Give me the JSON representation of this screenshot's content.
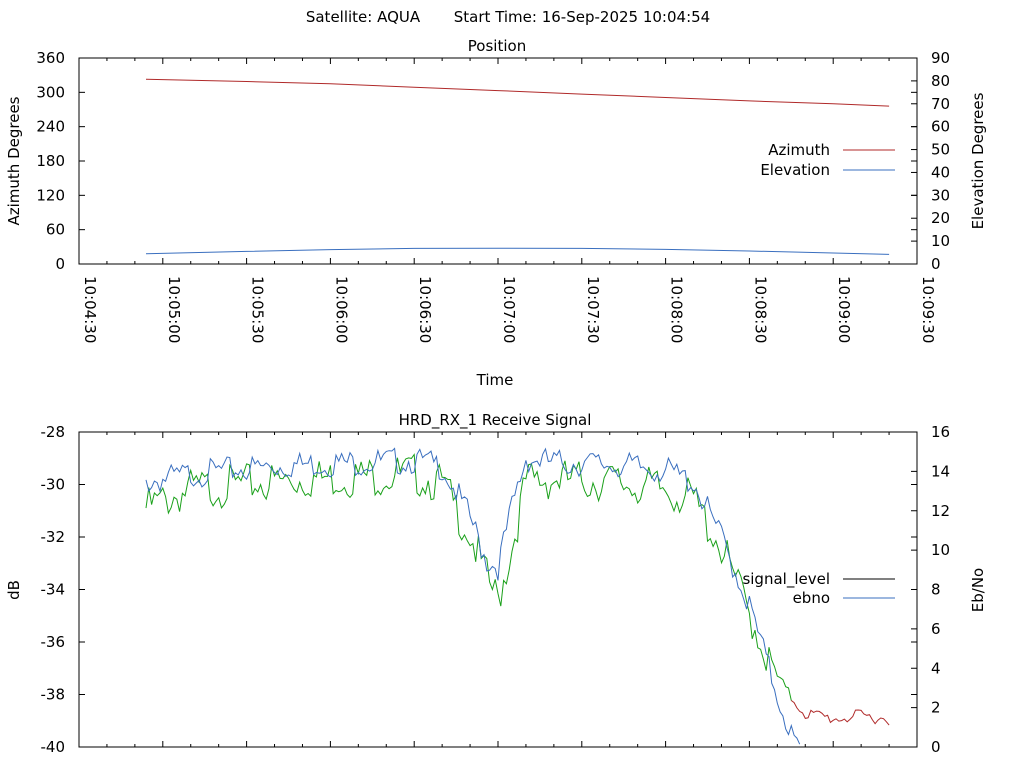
{
  "header": {
    "satellite": "Satellite: AQUA",
    "start_time": "Start Time: 16-Sep-2025 10:04:54"
  },
  "colors": {
    "azimuth": "#b02a2a",
    "elevation": "#3a6fbf",
    "signal_level_legend": "#000000",
    "ebno_legend": "#3a6fbf",
    "signal_trace": "#1aa01a",
    "signal_low_trace": "#b02a2a",
    "ebno_trace": "#3a6fbf"
  },
  "chart_data": [
    {
      "type": "line",
      "title": "Position",
      "xlabel": "Time",
      "ylabel": "Azimuth Degrees",
      "y2label": "Elevation Degrees",
      "xlim": [
        "10:04:30",
        "10:09:30"
      ],
      "x_ticks": [
        "10:04:30",
        "10:05:00",
        "10:05:30",
        "10:06:00",
        "10:06:30",
        "10:07:00",
        "10:07:30",
        "10:08:00",
        "10:08:30",
        "10:09:00",
        "10:09:30"
      ],
      "ylim": [
        0,
        360
      ],
      "y_ticks": [
        "0",
        "60",
        "120",
        "180",
        "240",
        "300",
        "360"
      ],
      "y2lim": [
        0,
        90
      ],
      "y2_ticks": [
        "0",
        "10",
        "20",
        "30",
        "40",
        "50",
        "60",
        "70",
        "80",
        "90"
      ],
      "legend_position": "right",
      "series": [
        {
          "name": "Azimuth",
          "axis": "y",
          "color_key": "azimuth",
          "points": [
            [
              "10:04:54",
              323
            ],
            [
              "10:05:30",
              319
            ],
            [
              "10:06:00",
              315
            ],
            [
              "10:06:30",
              309
            ],
            [
              "10:07:00",
              303
            ],
            [
              "10:07:30",
              297
            ],
            [
              "10:08:00",
              291
            ],
            [
              "10:08:30",
              285
            ],
            [
              "10:09:00",
              280
            ],
            [
              "10:09:20",
              276
            ]
          ]
        },
        {
          "name": "Elevation",
          "axis": "y2",
          "color_key": "elevation",
          "points": [
            [
              "10:04:54",
              4.5
            ],
            [
              "10:05:30",
              5.5
            ],
            [
              "10:06:00",
              6.3
            ],
            [
              "10:06:30",
              6.8
            ],
            [
              "10:07:00",
              6.9
            ],
            [
              "10:07:30",
              6.8
            ],
            [
              "10:08:00",
              6.4
            ],
            [
              "10:08:30",
              5.7
            ],
            [
              "10:09:00",
              4.8
            ],
            [
              "10:09:20",
              4.2
            ]
          ]
        }
      ]
    },
    {
      "type": "line",
      "title": "HRD_RX_1 Receive Signal",
      "ylabel": "dB",
      "y2label": "Eb/No",
      "xlim": [
        "10:04:30",
        "10:09:30"
      ],
      "ylim": [
        -40,
        -28
      ],
      "y_ticks": [
        "-40",
        "-38",
        "-36",
        "-34",
        "-32",
        "-30",
        "-28"
      ],
      "y2lim": [
        0,
        16
      ],
      "y2_ticks": [
        "0",
        "2",
        "4",
        "6",
        "8",
        "10",
        "12",
        "14",
        "16"
      ],
      "legend_position": "right",
      "series": [
        {
          "name": "signal_level",
          "axis": "y",
          "legend_color_key": "signal_level_legend",
          "points": [
            [
              "10:04:54",
              -30.5
            ],
            [
              "10:05:10",
              -29.8
            ],
            [
              "10:05:30",
              -29.6
            ],
            [
              "10:05:50",
              -29.4
            ],
            [
              "10:06:10",
              -29.3
            ],
            [
              "10:06:30",
              -29.2
            ],
            [
              "10:06:40",
              -29.6
            ],
            [
              "10:06:50",
              -31.5
            ],
            [
              "10:06:56",
              -33.2
            ],
            [
              "10:07:00",
              -34.0
            ],
            [
              "10:07:05",
              -32.0
            ],
            [
              "10:07:10",
              -29.5
            ],
            [
              "10:07:20",
              -29.4
            ],
            [
              "10:07:40",
              -29.5
            ],
            [
              "10:08:00",
              -29.8
            ],
            [
              "10:08:10",
              -30.2
            ],
            [
              "10:08:20",
              -32.0
            ],
            [
              "10:08:30",
              -34.5
            ],
            [
              "10:08:40",
              -37.2
            ],
            [
              "10:08:45",
              -38.0
            ],
            [
              "10:08:50",
              -38.6
            ],
            [
              "10:09:00",
              -38.8
            ],
            [
              "10:09:10",
              -38.7
            ],
            [
              "10:09:20",
              -38.8
            ]
          ]
        },
        {
          "name": "ebno",
          "axis": "y2",
          "color_key": "ebno_trace",
          "points": [
            [
              "10:04:54",
              13.8
            ],
            [
              "10:05:10",
              14.2
            ],
            [
              "10:05:30",
              14.5
            ],
            [
              "10:05:50",
              14.7
            ],
            [
              "10:06:10",
              14.8
            ],
            [
              "10:06:30",
              14.9
            ],
            [
              "10:06:40",
              14.6
            ],
            [
              "10:06:50",
              12.0
            ],
            [
              "10:06:56",
              9.8
            ],
            [
              "10:07:00",
              9.5
            ],
            [
              "10:07:05",
              12.5
            ],
            [
              "10:07:10",
              15.0
            ],
            [
              "10:07:20",
              14.8
            ],
            [
              "10:07:40",
              14.7
            ],
            [
              "10:08:00",
              14.4
            ],
            [
              "10:08:10",
              13.8
            ],
            [
              "10:08:20",
              11.0
            ],
            [
              "10:08:30",
              7.5
            ],
            [
              "10:08:40",
              3.0
            ],
            [
              "10:08:45",
              1.0
            ],
            [
              "10:08:48",
              0.0
            ]
          ]
        }
      ]
    }
  ]
}
